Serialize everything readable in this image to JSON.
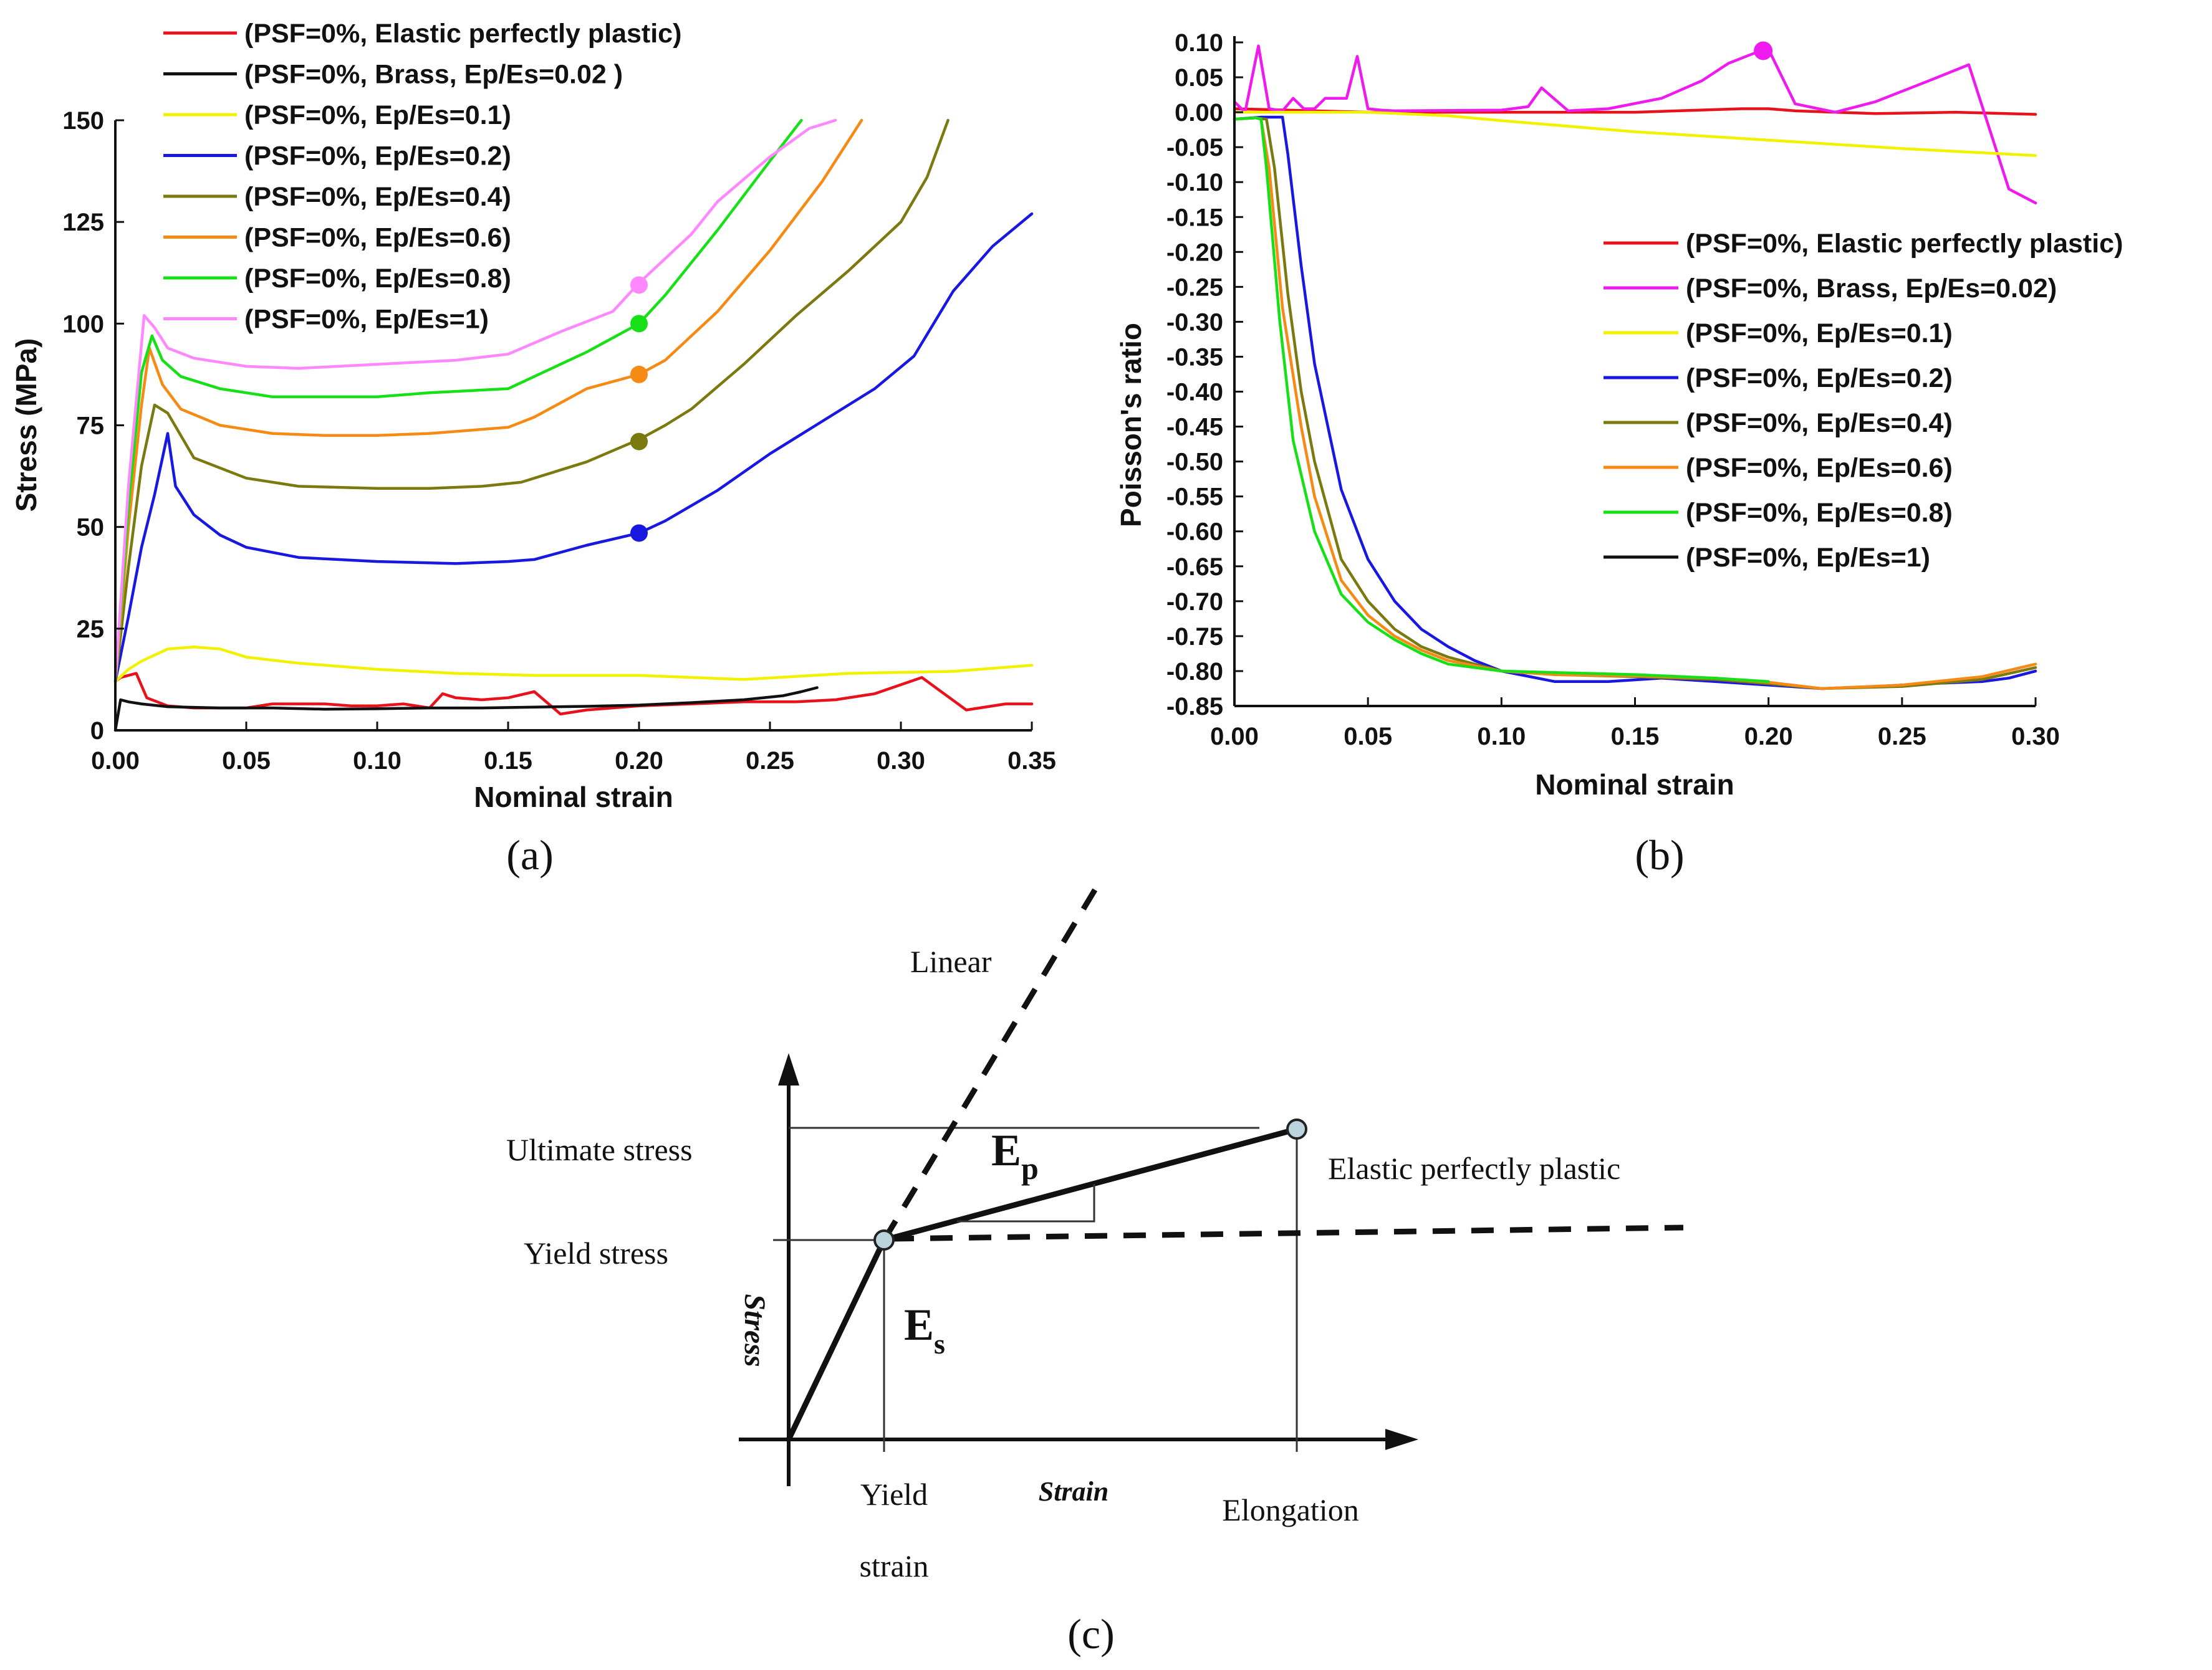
{
  "chart_data": [
    {
      "type": "line",
      "panel": "(a)",
      "xlabel": "Nominal strain",
      "ylabel": "Stress (MPa)",
      "xlim": [
        0,
        0.35
      ],
      "ylim": [
        0,
        150
      ],
      "xticks": [
        "0.00",
        "0.05",
        "0.10",
        "0.15",
        "0.20",
        "0.25",
        "0.30",
        "0.35"
      ],
      "yticks": [
        "0",
        "25",
        "50",
        "75",
        "100",
        "125",
        "150"
      ],
      "legend_position": "top-left",
      "series": [
        {
          "name": "(PSF=0%, Elastic perfectly plastic)",
          "color": "#e8121c",
          "x": [
            0,
            0.002,
            0.008,
            0.012,
            0.02,
            0.03,
            0.05,
            0.06,
            0.07,
            0.08,
            0.09,
            0.1,
            0.11,
            0.12,
            0.125,
            0.13,
            0.14,
            0.15,
            0.16,
            0.17,
            0.18,
            0.2,
            0.22,
            0.24,
            0.26,
            0.275,
            0.29,
            0.308,
            0.325,
            0.34,
            0.35
          ],
          "y": [
            12,
            13,
            14,
            8,
            6,
            5.5,
            5.5,
            6.5,
            6.5,
            6.5,
            6,
            6,
            6.5,
            5.5,
            9,
            8,
            7.5,
            8,
            9.5,
            4,
            5,
            6,
            6.5,
            7,
            7,
            7.5,
            9,
            13,
            5,
            6.5,
            6.5
          ]
        },
        {
          "name": "(PSF=0%, Brass, Ep/Es=0.02 )",
          "color": "#111111",
          "x": [
            0,
            0.002,
            0.005,
            0.01,
            0.02,
            0.04,
            0.06,
            0.08,
            0.1,
            0.12,
            0.14,
            0.16,
            0.18,
            0.2,
            0.22,
            0.24,
            0.255,
            0.262,
            0.268
          ],
          "y": [
            0,
            7.5,
            7,
            6.5,
            5.8,
            5.5,
            5.5,
            5.2,
            5.3,
            5.5,
            5.5,
            5.7,
            5.9,
            6.2,
            6.8,
            7.5,
            8.5,
            9.5,
            10.5
          ]
        },
        {
          "name": "(PSF=0%, Ep/Es=0.1)",
          "color": "#f2f200",
          "x": [
            0,
            0.005,
            0.01,
            0.02,
            0.03,
            0.04,
            0.05,
            0.07,
            0.1,
            0.13,
            0.16,
            0.2,
            0.24,
            0.28,
            0.32,
            0.35
          ],
          "y": [
            12,
            15,
            17,
            20,
            20.5,
            20,
            18,
            16.5,
            15,
            14,
            13.5,
            13.5,
            12.5,
            14,
            14.5,
            16
          ]
        },
        {
          "name": "(PSF=0%, Ep/Es=0.2)",
          "color": "#1818e0",
          "x": [
            0,
            0.005,
            0.01,
            0.015,
            0.02,
            0.023,
            0.03,
            0.04,
            0.05,
            0.07,
            0.1,
            0.13,
            0.15,
            0.16,
            0.18,
            0.2,
            0.21,
            0.23,
            0.25,
            0.27,
            0.29,
            0.305,
            0.32,
            0.335,
            0.35
          ],
          "y": [
            12,
            28,
            45,
            58,
            73,
            60,
            53,
            48,
            45,
            42.5,
            41.5,
            41,
            41.5,
            42,
            45.5,
            48.5,
            51.5,
            59,
            68,
            76,
            84,
            92,
            108,
            119,
            127
          ]
        },
        {
          "name": "(PSF=0%, Ep/Es=0.4)",
          "color": "#7a7a10",
          "x": [
            0,
            0.005,
            0.01,
            0.015,
            0.02,
            0.03,
            0.05,
            0.07,
            0.1,
            0.12,
            0.14,
            0.155,
            0.18,
            0.2,
            0.21,
            0.22,
            0.24,
            0.26,
            0.28,
            0.3,
            0.31,
            0.318
          ],
          "y": [
            12,
            40,
            65,
            80,
            78,
            67,
            62,
            60,
            59.5,
            59.5,
            60,
            61,
            66,
            71.5,
            75,
            79,
            90,
            102,
            113,
            125,
            136,
            150
          ]
        },
        {
          "name": "(PSF=0%, Ep/Es=0.6)",
          "color": "#f58a14",
          "x": [
            0,
            0.005,
            0.01,
            0.013,
            0.018,
            0.025,
            0.04,
            0.06,
            0.08,
            0.1,
            0.12,
            0.15,
            0.16,
            0.18,
            0.2,
            0.21,
            0.23,
            0.25,
            0.27,
            0.285
          ],
          "y": [
            12,
            50,
            80,
            94,
            85,
            79,
            75,
            73,
            72.5,
            72.5,
            73,
            74.5,
            77,
            84,
            87.5,
            91,
            103,
            118,
            135,
            150
          ]
        },
        {
          "name": "(PSF=0%, Ep/Es=0.8)",
          "color": "#18e018",
          "x": [
            0,
            0.005,
            0.01,
            0.014,
            0.018,
            0.025,
            0.04,
            0.06,
            0.08,
            0.1,
            0.12,
            0.15,
            0.16,
            0.18,
            0.2,
            0.21,
            0.23,
            0.25,
            0.262
          ],
          "y": [
            12,
            55,
            88,
            97,
            91,
            87,
            84,
            82,
            82,
            82,
            83,
            84,
            87,
            93,
            100,
            107,
            123,
            140,
            150
          ]
        },
        {
          "name": "(PSF=0%, Ep/Es=1)",
          "color": "#ff88ff",
          "x": [
            0,
            0.005,
            0.011,
            0.015,
            0.02,
            0.03,
            0.05,
            0.07,
            0.1,
            0.13,
            0.15,
            0.17,
            0.19,
            0.2,
            0.22,
            0.23,
            0.25,
            0.265,
            0.275
          ],
          "y": [
            12,
            60,
            102,
            99,
            94,
            91.5,
            89.5,
            89,
            90,
            91,
            92.5,
            98,
            103,
            110,
            122,
            130,
            141,
            148,
            150
          ]
        }
      ],
      "markers": [
        {
          "x": 0.2,
          "y": 109.5,
          "color": "#ff88ff"
        },
        {
          "x": 0.2,
          "y": 100,
          "color": "#18e018"
        },
        {
          "x": 0.2,
          "y": 87.5,
          "color": "#f58a14"
        },
        {
          "x": 0.2,
          "y": 71,
          "color": "#7a7a10"
        },
        {
          "x": 0.2,
          "y": 48.5,
          "color": "#1818e0"
        }
      ]
    },
    {
      "type": "line",
      "panel": "(b)",
      "xlabel": "Nominal strain",
      "ylabel": "Poisson's ratio",
      "xlim": [
        0,
        0.3
      ],
      "ylim": [
        -0.85,
        0.1
      ],
      "xticks": [
        "0.00",
        "0.05",
        "0.10",
        "0.15",
        "0.20",
        "0.25",
        "0.30"
      ],
      "yticks": [
        "0.10",
        "0.05",
        "0.00",
        "-0.05",
        "-0.10",
        "-0.15",
        "-0.20",
        "-0.25",
        "-0.30",
        "-0.35",
        "-0.40",
        "-0.45",
        "-0.50",
        "-0.55",
        "-0.60",
        "-0.65",
        "-0.70",
        "-0.75",
        "-0.80",
        "-0.85"
      ],
      "legend_position": "center-right",
      "series": [
        {
          "name": "(PSF=0%, Elastic perfectly plastic)",
          "color": "#e8121c",
          "x": [
            0,
            0.02,
            0.05,
            0.1,
            0.15,
            0.19,
            0.2,
            0.21,
            0.24,
            0.27,
            0.3
          ],
          "y": [
            0.005,
            0.003,
            0,
            0,
            0,
            0.005,
            0.005,
            0.002,
            -0.002,
            0,
            -0.003
          ]
        },
        {
          "name": "(PSF=0%, Brass, Ep/Es=0.02)",
          "color": "#ee1aee",
          "x": [
            0,
            0.004,
            0.009,
            0.013,
            0.018,
            0.022,
            0.026,
            0.03,
            0.034,
            0.038,
            0.042,
            0.046,
            0.05,
            0.055,
            0.06,
            0.1,
            0.11,
            0.115,
            0.125,
            0.14,
            0.16,
            0.175,
            0.185,
            0.195,
            0.2,
            0.21,
            0.225,
            0.24,
            0.26,
            0.275,
            0.29,
            0.3
          ],
          "y": [
            0.015,
            0,
            0.095,
            0.005,
            0.002,
            0.02,
            0.005,
            0.005,
            0.02,
            0.02,
            0.02,
            0.08,
            0.005,
            0.003,
            0.002,
            0.003,
            0.008,
            0.035,
            0.002,
            0.005,
            0.02,
            0.045,
            0.07,
            0.085,
            0.09,
            0.012,
            0,
            0.015,
            0.045,
            0.068,
            -0.11,
            -0.13
          ]
        },
        {
          "name": "(PSF=0%, Ep/Es=0.1)",
          "color": "#f2f200",
          "x": [
            0,
            0.05,
            0.08,
            0.1,
            0.15,
            0.2,
            0.25,
            0.3
          ],
          "y": [
            0,
            0,
            -0.005,
            -0.012,
            -0.028,
            -0.04,
            -0.052,
            -0.062
          ]
        },
        {
          "name": "(PSF=0%, Ep/Es=0.2)",
          "color": "#1818e0",
          "x": [
            0,
            0.01,
            0.018,
            0.02,
            0.025,
            0.03,
            0.04,
            0.05,
            0.06,
            0.07,
            0.08,
            0.09,
            0.1,
            0.12,
            0.14,
            0.16,
            0.18,
            0.2,
            0.22,
            0.24,
            0.26,
            0.28,
            0.29,
            0.3
          ],
          "y": [
            -0.01,
            -0.007,
            -0.007,
            -0.06,
            -0.22,
            -0.36,
            -0.54,
            -0.64,
            -0.7,
            -0.74,
            -0.765,
            -0.785,
            -0.8,
            -0.815,
            -0.815,
            -0.81,
            -0.815,
            -0.82,
            -0.825,
            -0.822,
            -0.818,
            -0.815,
            -0.81,
            -0.8
          ]
        },
        {
          "name": "(PSF=0%, Ep/Es=0.4)",
          "color": "#7a7a10",
          "x": [
            0,
            0.008,
            0.012,
            0.015,
            0.02,
            0.025,
            0.03,
            0.04,
            0.05,
            0.06,
            0.07,
            0.08,
            0.1,
            0.12,
            0.15,
            0.18,
            0.2,
            0.22,
            0.25,
            0.28,
            0.3
          ],
          "y": [
            -0.01,
            -0.008,
            -0.01,
            -0.08,
            -0.26,
            -0.4,
            -0.5,
            -0.64,
            -0.7,
            -0.74,
            -0.765,
            -0.78,
            -0.8,
            -0.805,
            -0.808,
            -0.812,
            -0.818,
            -0.825,
            -0.822,
            -0.812,
            -0.795
          ]
        },
        {
          "name": "(PSF=0%, Ep/Es=0.6)",
          "color": "#f58a14",
          "x": [
            0,
            0.008,
            0.01,
            0.013,
            0.018,
            0.025,
            0.03,
            0.04,
            0.05,
            0.06,
            0.07,
            0.08,
            0.1,
            0.12,
            0.15,
            0.18,
            0.2,
            0.22,
            0.25,
            0.28,
            0.3
          ],
          "y": [
            -0.01,
            -0.008,
            -0.01,
            -0.08,
            -0.28,
            -0.45,
            -0.55,
            -0.67,
            -0.72,
            -0.75,
            -0.77,
            -0.785,
            -0.8,
            -0.805,
            -0.807,
            -0.81,
            -0.816,
            -0.825,
            -0.82,
            -0.808,
            -0.79
          ]
        },
        {
          "name": "(PSF=0%, Ep/Es=0.8)",
          "color": "#18e018",
          "x": [
            0,
            0.008,
            0.01,
            0.012,
            0.017,
            0.022,
            0.03,
            0.04,
            0.05,
            0.06,
            0.07,
            0.08,
            0.1,
            0.12,
            0.15,
            0.18,
            0.2
          ],
          "y": [
            -0.01,
            -0.008,
            -0.01,
            -0.08,
            -0.3,
            -0.47,
            -0.6,
            -0.69,
            -0.73,
            -0.755,
            -0.775,
            -0.79,
            -0.8,
            -0.802,
            -0.805,
            -0.81,
            -0.815
          ]
        },
        {
          "name": "(PSF=0%, Ep/Es=1)",
          "color": "#111111",
          "x": [],
          "y": []
        }
      ],
      "markers": [
        {
          "x": 0.198,
          "y": 0.088,
          "color": "#ee1aee"
        }
      ]
    }
  ],
  "panel_c": {
    "label": "(c)",
    "linear_label": "Linear",
    "ultimate_stress_label": "Ultimate stress",
    "yield_stress_label": "Yield stress",
    "stress_axis_label": "Stress",
    "strain_axis_label": "Strain",
    "yield_strain_label_line1": "Yield",
    "yield_strain_label_line2": "strain",
    "elongation_label": "Elongation",
    "elastic_perfectly_plastic_label": "Elastic perfectly plastic",
    "ep_label": "E",
    "ep_subscript": "p",
    "es_label": "E",
    "es_subscript": "s"
  }
}
